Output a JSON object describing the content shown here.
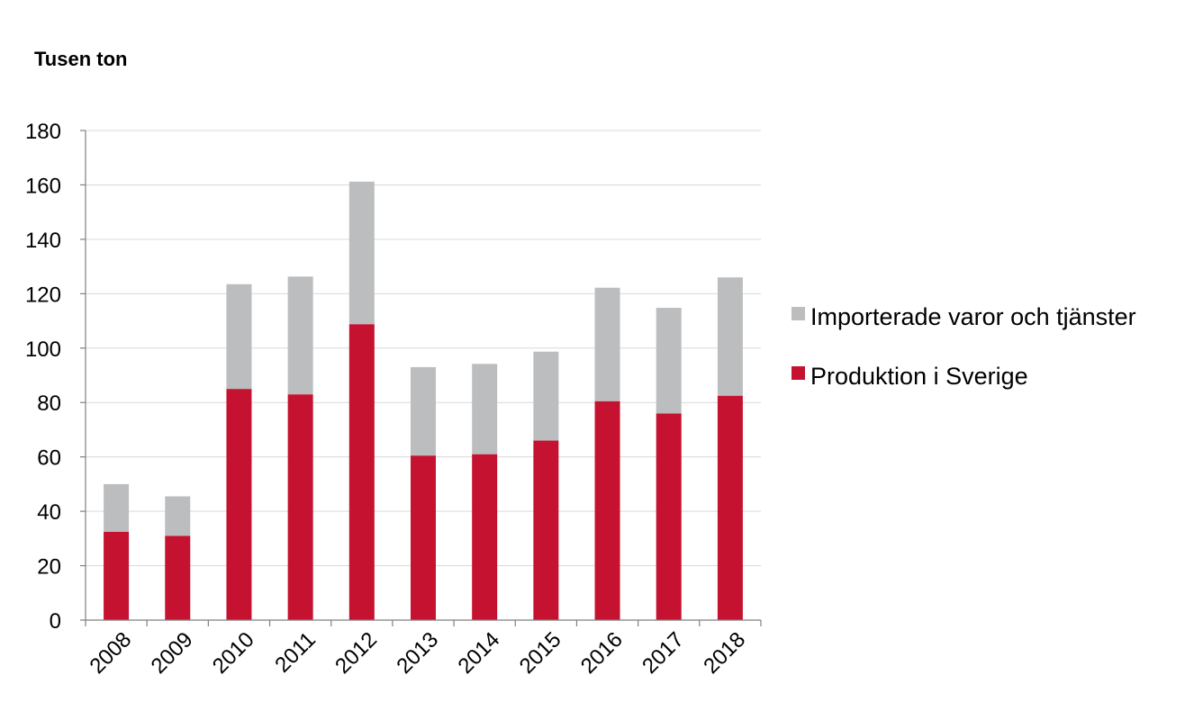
{
  "chart_data": {
    "type": "bar",
    "stacked": true,
    "title": "Tusen ton",
    "xlabel": "",
    "ylabel": "",
    "ylim": [
      0,
      180
    ],
    "yticks": [
      0,
      20,
      40,
      60,
      80,
      100,
      120,
      140,
      160,
      180
    ],
    "grid": true,
    "legend_position": "right",
    "categories": [
      "2008",
      "2009",
      "2010",
      "2011",
      "2012",
      "2013",
      "2014",
      "2015",
      "2016",
      "2017",
      "2018"
    ],
    "series": [
      {
        "name": "Produktion i Sverige",
        "color": "#c41230",
        "values": [
          32.5,
          31,
          85,
          83,
          108.8,
          60.5,
          61,
          66,
          80.5,
          76,
          82.5
        ]
      },
      {
        "name": "Importerade varor och tjänster",
        "color": "#bcbdbf",
        "values": [
          17.5,
          14.5,
          38.5,
          43.3,
          52.4,
          32.5,
          33.2,
          32.7,
          41.7,
          38.8,
          43.5
        ]
      }
    ]
  }
}
